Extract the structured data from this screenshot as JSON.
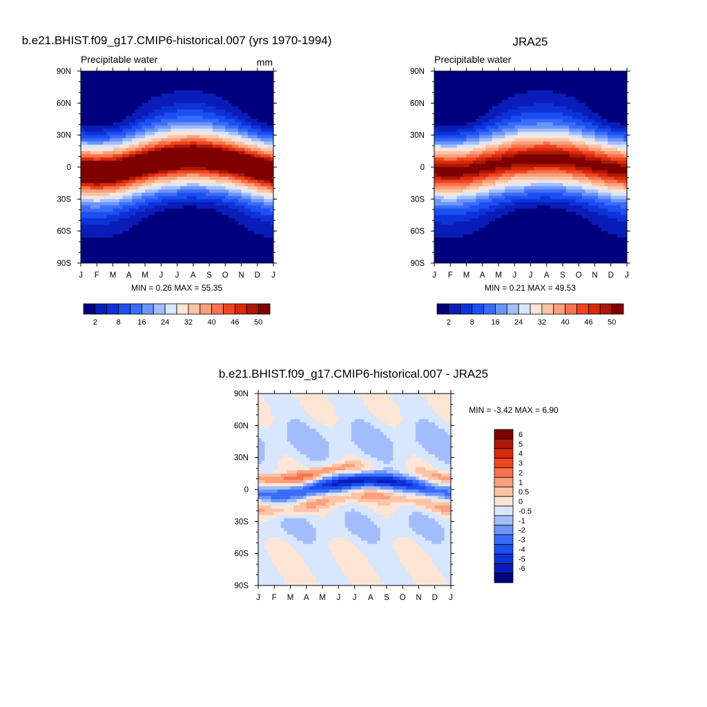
{
  "chart_data": [
    {
      "type": "heatmap",
      "title": "b.e21.BHIST.f09_g17.CMIP6-historical.007 (yrs 1970-1994)",
      "left_label": "Precipitable water",
      "right_label": "mm",
      "x_tick_labels": [
        "J",
        "F",
        "M",
        "A",
        "M",
        "J",
        "J",
        "A",
        "S",
        "O",
        "N",
        "D",
        "J"
      ],
      "y_tick_labels": [
        "90N",
        "60N",
        "30N",
        "0",
        "30S",
        "60S",
        "90S"
      ],
      "stats": "MIN =   0.26 MAX =  55.35",
      "min": 0.26,
      "max": 55.35,
      "itcz_lat": [
        -4,
        -5,
        -4,
        -1,
        3,
        6,
        8,
        9,
        8,
        6,
        3,
        -1,
        -4
      ],
      "colorbar": {
        "labels": [
          "2",
          "8",
          "16",
          "24",
          "32",
          "40",
          "46",
          "50"
        ],
        "levels": [
          2,
          5,
          8,
          12,
          16,
          20,
          24,
          28,
          32,
          36,
          40,
          43,
          46,
          48,
          50
        ],
        "colors": [
          "#00007f",
          "#0a1db8",
          "#0d33d8",
          "#1c4ff2",
          "#3b6cf9",
          "#6c95fa",
          "#a3bdfc",
          "#d8e6fe",
          "#fde5d6",
          "#fbc4a6",
          "#f9a07c",
          "#f7734f",
          "#f1451f",
          "#d92a09",
          "#ac1707",
          "#7f0000"
        ]
      }
    },
    {
      "type": "heatmap",
      "title": "JRA25",
      "left_label": "Precipitable water",
      "x_tick_labels": [
        "J",
        "F",
        "M",
        "A",
        "M",
        "J",
        "J",
        "A",
        "S",
        "O",
        "N",
        "D",
        "J"
      ],
      "y_tick_labels": [
        "90N",
        "60N",
        "30N",
        "0",
        "30S",
        "60S",
        "90S"
      ],
      "stats": "MIN =   0.21 MAX =  49.53",
      "min": 0.21,
      "max": 49.53,
      "itcz_lat": [
        -3,
        -4,
        -3,
        0,
        3,
        6,
        7,
        8,
        7,
        5,
        2,
        -1,
        -3
      ],
      "colorbar": {
        "labels": [
          "2",
          "8",
          "16",
          "24",
          "32",
          "40",
          "46",
          "50"
        ],
        "levels": [
          2,
          5,
          8,
          12,
          16,
          20,
          24,
          28,
          32,
          36,
          40,
          43,
          46,
          48,
          50
        ],
        "colors": [
          "#00007f",
          "#0a1db8",
          "#0d33d8",
          "#1c4ff2",
          "#3b6cf9",
          "#6c95fa",
          "#a3bdfc",
          "#d8e6fe",
          "#fde5d6",
          "#fbc4a6",
          "#f9a07c",
          "#f7734f",
          "#f1451f",
          "#d92a09",
          "#ac1707",
          "#7f0000"
        ]
      }
    },
    {
      "type": "heatmap",
      "title": "b.e21.BHIST.f09_g17.CMIP6-historical.007 - JRA25",
      "x_tick_labels": [
        "J",
        "F",
        "M",
        "A",
        "M",
        "J",
        "J",
        "A",
        "S",
        "O",
        "N",
        "D",
        "J"
      ],
      "y_tick_labels": [
        "90N",
        "60N",
        "30N",
        "0",
        "30S",
        "60S",
        "90S"
      ],
      "stats": "MIN =  -3.42 MAX =   6.90",
      "min": -3.42,
      "max": 6.9,
      "itcz_lat": [
        -4,
        -5,
        -4,
        -1,
        3,
        6,
        8,
        9,
        8,
        6,
        3,
        -1,
        -4
      ],
      "colorbar": {
        "labels": [
          "6",
          "5",
          "4",
          "3",
          "2",
          "1",
          "0.5",
          "0",
          "-0.5",
          "-1",
          "-2",
          "-3",
          "-4",
          "-5",
          "-6"
        ],
        "levels": [
          -6,
          -5,
          -4,
          -3,
          -2,
          -1,
          -0.5,
          0,
          0.5,
          1,
          2,
          3,
          4,
          5,
          6
        ],
        "colors": [
          "#7f0000",
          "#ac1707",
          "#d92a09",
          "#f1451f",
          "#f7734f",
          "#f9a07c",
          "#fbc4a6",
          "#fde5d6",
          "#d8e6fe",
          "#a3bdfc",
          "#6c95fa",
          "#3b6cf9",
          "#1c4ff2",
          "#0d33d8",
          "#0a1db8",
          "#00007f"
        ]
      }
    }
  ]
}
